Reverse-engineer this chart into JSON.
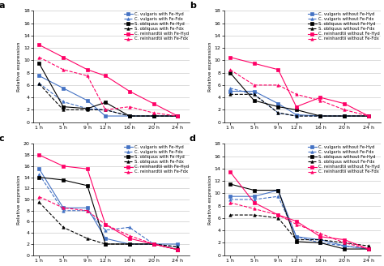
{
  "x": [
    1,
    5,
    9,
    12,
    16,
    20,
    24
  ],
  "panel_a": {
    "title": "a",
    "ylim": [
      0,
      18
    ],
    "yticks": [
      0,
      2,
      4,
      6,
      8,
      10,
      12,
      14,
      16,
      18
    ],
    "series": [
      {
        "label": "C. vulgaris with Fe-Hyd",
        "color": "#4472C4",
        "linestyle": "-",
        "marker": "s",
        "values": [
          7.5,
          5.5,
          3.5,
          1.0,
          1.0,
          1.0,
          1.0
        ]
      },
      {
        "label": "C. vulgaris with Fe-Fdx",
        "color": "#4472C4",
        "linestyle": "--",
        "marker": "^",
        "values": [
          6.3,
          3.3,
          2.2,
          2.0,
          1.0,
          1.0,
          1.0
        ]
      },
      {
        "label": "S. obliquus with Fe-Hyd",
        "color": "#000000",
        "linestyle": "-",
        "marker": "s",
        "values": [
          9.5,
          2.5,
          2.2,
          3.2,
          1.0,
          1.0,
          1.0
        ]
      },
      {
        "label": "S. obliquus with Fe-Fdx",
        "color": "#000000",
        "linestyle": "--",
        "marker": "^",
        "values": [
          6.2,
          2.0,
          2.0,
          2.0,
          1.0,
          1.0,
          1.0
        ]
      },
      {
        "label": "C. reinhardtii with Fe-Hyd",
        "color": "#FF0066",
        "linestyle": "-",
        "marker": "s",
        "values": [
          12.5,
          10.5,
          8.5,
          7.5,
          5.0,
          3.0,
          1.0
        ]
      },
      {
        "label": "C. reinhardtii with Fe-Fdx",
        "color": "#FF0066",
        "linestyle": "--",
        "marker": "^",
        "values": [
          10.5,
          8.5,
          7.5,
          2.0,
          2.5,
          1.5,
          1.0
        ]
      }
    ]
  },
  "panel_b": {
    "title": "b",
    "ylim": [
      0,
      18
    ],
    "yticks": [
      0,
      2,
      4,
      6,
      8,
      10,
      12,
      14,
      16,
      18
    ],
    "series": [
      {
        "label": "C. vulgaris without Fe-Hyd",
        "color": "#4472C4",
        "linestyle": "-",
        "marker": "s",
        "values": [
          5.0,
          5.0,
          3.0,
          1.2,
          1.0,
          1.0,
          1.0
        ]
      },
      {
        "label": "C. vulgaris without Fe-Fdx",
        "color": "#4472C4",
        "linestyle": "--",
        "marker": "^",
        "values": [
          5.5,
          4.5,
          1.5,
          1.0,
          1.0,
          1.0,
          1.0
        ]
      },
      {
        "label": "S. obliquus without Fe-Hyd",
        "color": "#000000",
        "linestyle": "-",
        "marker": "s",
        "values": [
          8.0,
          3.5,
          2.5,
          2.0,
          1.0,
          1.0,
          1.0
        ]
      },
      {
        "label": "S. obliquus without Fe-Fdx",
        "color": "#000000",
        "linestyle": "--",
        "marker": "^",
        "values": [
          4.5,
          4.5,
          1.5,
          1.0,
          1.0,
          1.0,
          1.0
        ]
      },
      {
        "label": "C. reinhardtii without Fe-Hyd",
        "color": "#FF0066",
        "linestyle": "-",
        "marker": "s",
        "values": [
          10.5,
          9.5,
          8.5,
          2.5,
          4.0,
          3.0,
          1.0
        ]
      },
      {
        "label": "C. reinhardtii without Fe-Fdx",
        "color": "#FF0066",
        "linestyle": "--",
        "marker": "^",
        "values": [
          8.5,
          6.0,
          6.0,
          4.5,
          3.5,
          2.0,
          1.0
        ]
      }
    ]
  },
  "panel_c": {
    "title": "c",
    "ylim": [
      0,
      20
    ],
    "yticks": [
      0,
      2,
      4,
      6,
      8,
      10,
      12,
      14,
      16,
      18,
      20
    ],
    "series": [
      {
        "label": "C. vulgaris with Fe-Hyd",
        "color": "#4472C4",
        "linestyle": "-",
        "marker": "s",
        "values": [
          15.5,
          8.5,
          8.5,
          3.0,
          2.0,
          2.0,
          2.0
        ]
      },
      {
        "label": "C. vulgaris with Fe-Fdx",
        "color": "#4472C4",
        "linestyle": "--",
        "marker": "^",
        "values": [
          14.5,
          8.0,
          8.0,
          4.5,
          5.0,
          2.0,
          1.5
        ]
      },
      {
        "label": "S. obliquus with Fe-Hyd",
        "color": "#000000",
        "linestyle": "-",
        "marker": "s",
        "values": [
          14.0,
          13.5,
          12.5,
          2.0,
          2.0,
          2.0,
          1.0
        ]
      },
      {
        "label": "S. obliquus with Fe-Fdx",
        "color": "#000000",
        "linestyle": "--",
        "marker": "^",
        "values": [
          9.5,
          5.0,
          3.0,
          2.0,
          2.0,
          2.0,
          1.5
        ]
      },
      {
        "label": "C. reinhardtii with Fe-Hyd",
        "color": "#FF0066",
        "linestyle": "-",
        "marker": "s",
        "values": [
          18.0,
          16.0,
          15.5,
          5.5,
          3.0,
          2.0,
          1.0
        ]
      },
      {
        "label": "C. reinhardtii with Fe-Fdx",
        "color": "#FF0066",
        "linestyle": "--",
        "marker": "^",
        "values": [
          10.5,
          8.5,
          8.0,
          5.5,
          3.5,
          2.0,
          1.0
        ]
      }
    ]
  },
  "panel_d": {
    "title": "d",
    "ylim": [
      0,
      18
    ],
    "yticks": [
      0,
      2,
      4,
      6,
      8,
      10,
      12,
      14,
      16,
      18
    ],
    "series": [
      {
        "label": "C. vulgaris without Fe-Hyd",
        "color": "#4472C4",
        "linestyle": "-",
        "marker": "s",
        "values": [
          9.5,
          9.5,
          10.5,
          3.0,
          2.5,
          1.5,
          1.0
        ]
      },
      {
        "label": "C. vulgaris without Fe-Fdx",
        "color": "#4472C4",
        "linestyle": "--",
        "marker": "^",
        "values": [
          9.0,
          9.0,
          9.5,
          3.0,
          2.0,
          1.5,
          1.0
        ]
      },
      {
        "label": "S. obliquus without Fe-Hyd",
        "color": "#000000",
        "linestyle": "-",
        "marker": "s",
        "values": [
          11.5,
          10.5,
          10.5,
          2.2,
          2.0,
          1.0,
          1.0
        ]
      },
      {
        "label": "S. obliquus without Fe-Fdx",
        "color": "#000000",
        "linestyle": "--",
        "marker": "^",
        "values": [
          6.5,
          6.5,
          6.0,
          2.5,
          2.5,
          2.0,
          1.5
        ]
      },
      {
        "label": "C. reinhardtii without Fe-Hyd",
        "color": "#FF0066",
        "linestyle": "-",
        "marker": "s",
        "values": [
          13.5,
          8.5,
          6.5,
          5.5,
          3.0,
          2.5,
          1.0
        ]
      },
      {
        "label": "C. reinhardtii without Fe-Fdx",
        "color": "#FF0066",
        "linestyle": "--",
        "marker": "^",
        "values": [
          8.5,
          7.5,
          6.5,
          5.0,
          3.5,
          2.0,
          1.0
        ]
      }
    ]
  },
  "xlabel_ticks": [
    "1 h",
    "5 h",
    "9 h",
    "12 h",
    "16 h",
    "20 h",
    "24 h"
  ],
  "ylabel": "Relative expression",
  "bg_color": "#FFFFFF",
  "grid_color": "#CCCCCC"
}
